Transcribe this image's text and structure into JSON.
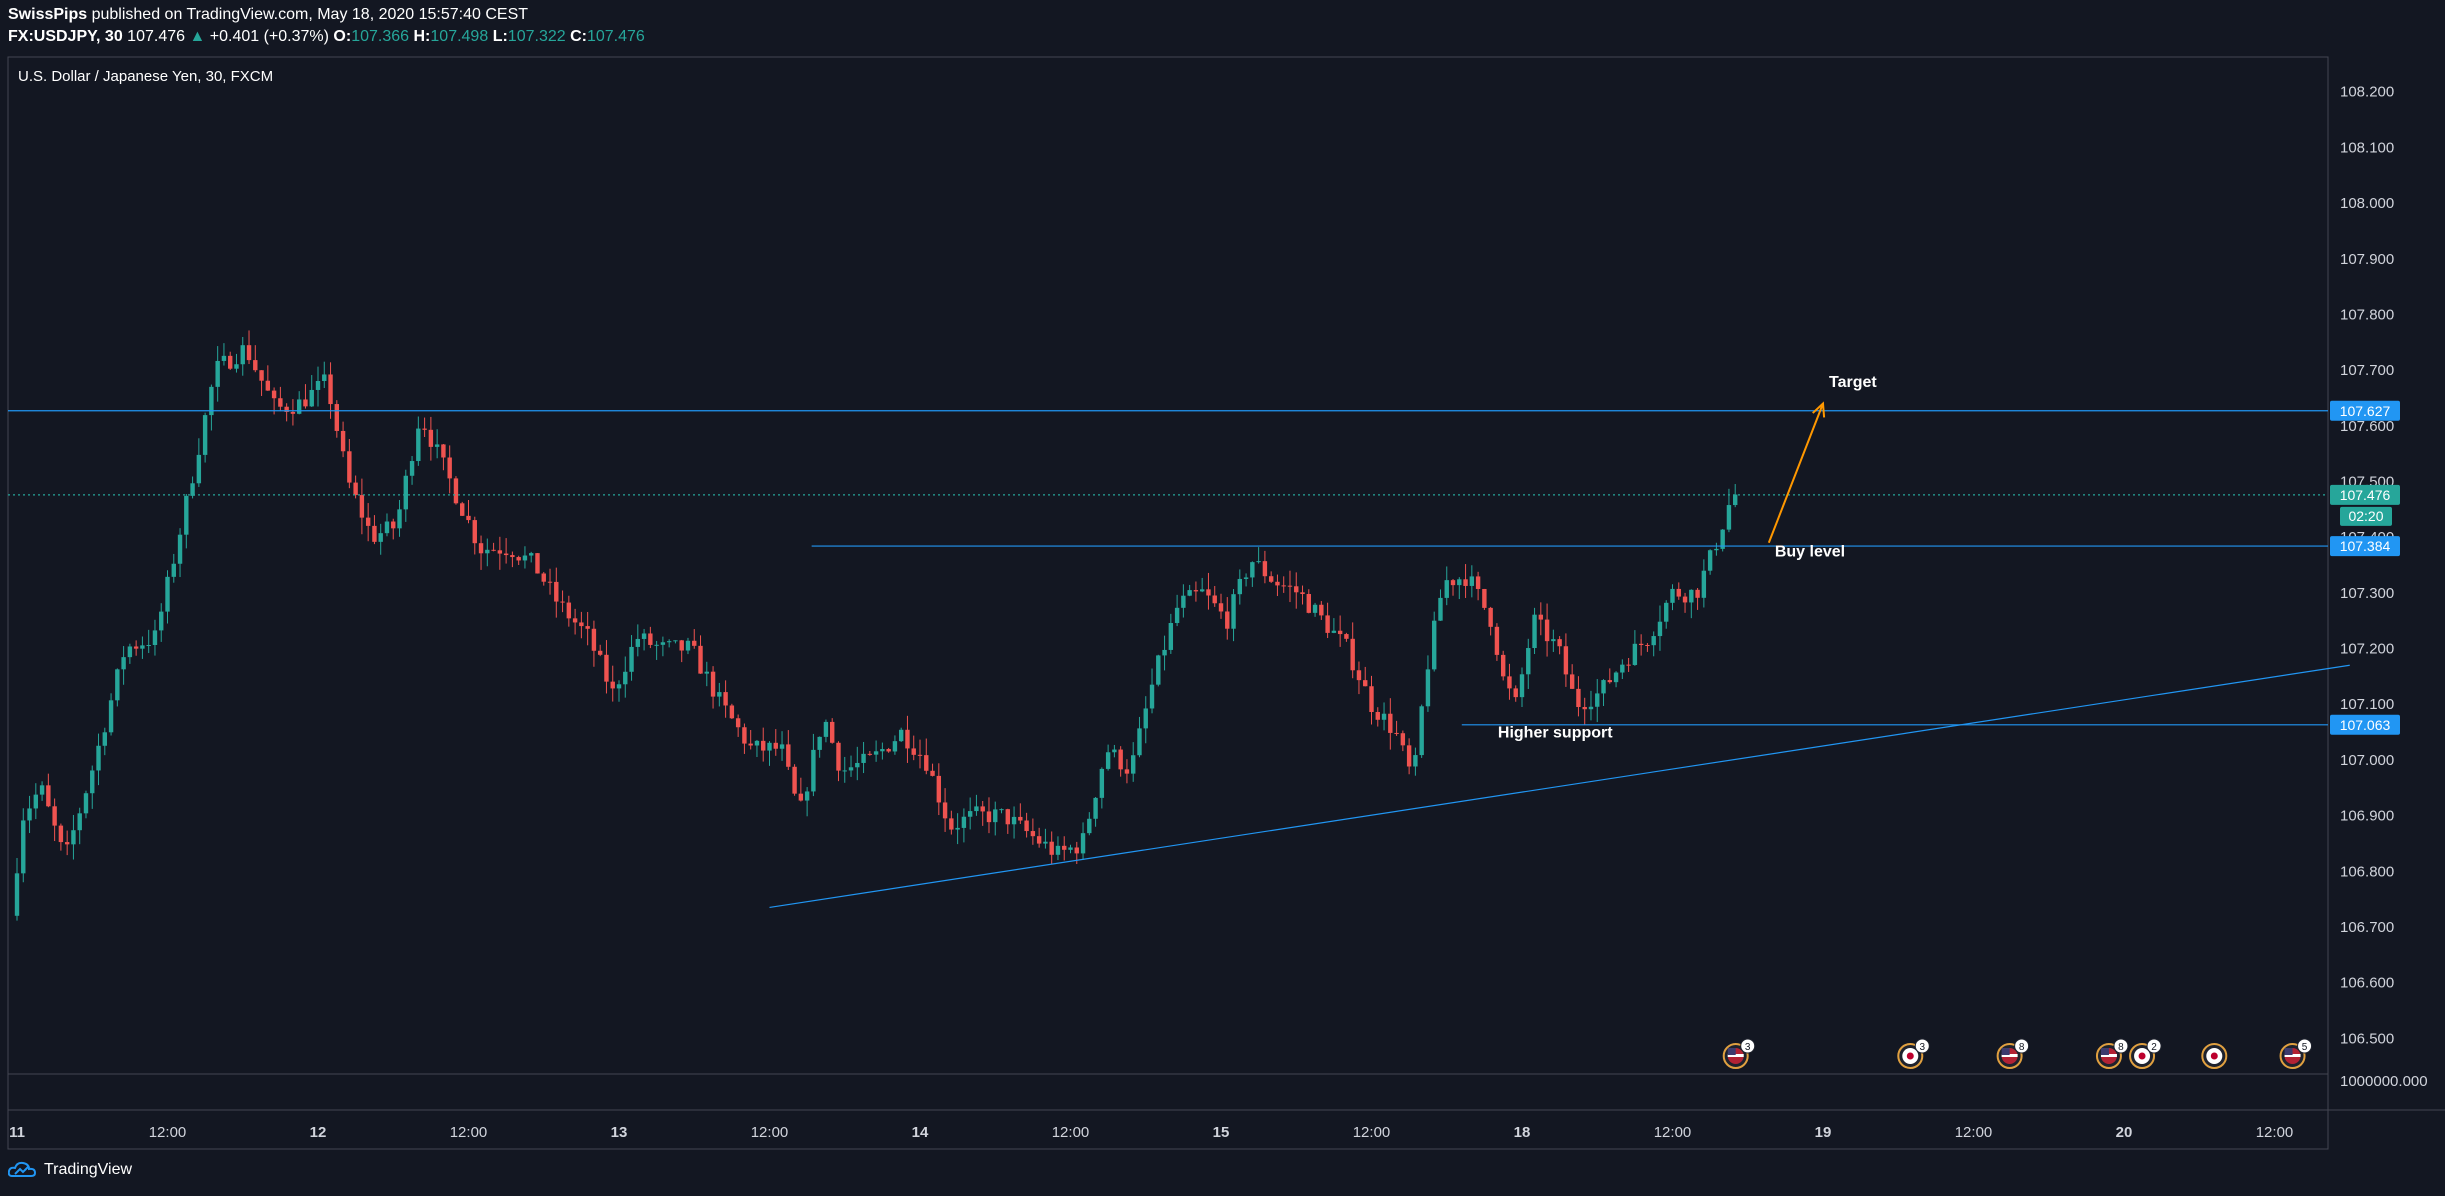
{
  "header": {
    "author": "SwissPips",
    "published": " published on TradingView.com, May 18, 2020 15:57:40 CEST",
    "symbol_interval": "FX:USDJPY, 30",
    "last": "107.476",
    "change": "+0.401 (+0.37%)",
    "o_label": "O:",
    "o_value": "107.366",
    "h_label": "H:",
    "h_value": "107.498",
    "l_label": "L:",
    "l_value": "107.322",
    "c_label": "C:",
    "c_value": "107.476"
  },
  "footer": {
    "brand": "TradingView"
  },
  "colors": {
    "background": "#131722",
    "up": "#26a69a",
    "down": "#ef5350",
    "line_blue": "#2196f3",
    "label_blue": "#2196f3",
    "arrow_orange": "#ff9800",
    "last_price_green": "#26a69a"
  },
  "chart_data": {
    "type": "candlestick",
    "title": "U.S. Dollar / Japanese Yen, 30, FXCM",
    "symbol": "USDJPY",
    "y_ticks": [
      "108.200",
      "108.100",
      "108.000",
      "107.900",
      "107.800",
      "107.700",
      "107.600",
      "107.500",
      "107.400",
      "107.300",
      "107.200",
      "107.100",
      "107.000",
      "106.900",
      "106.800",
      "106.700",
      "106.600",
      "106.500"
    ],
    "ylim": [
      106.47,
      108.23
    ],
    "volume_axis_tick": "1000000.000",
    "x_ticks": [
      {
        "label": "11",
        "day": 0.0
      },
      {
        "label": "12:00",
        "day": 0.5
      },
      {
        "label": "12",
        "day": 1.0
      },
      {
        "label": "12:00",
        "day": 1.5
      },
      {
        "label": "13",
        "day": 2.0
      },
      {
        "label": "12:00",
        "day": 2.5
      },
      {
        "label": "14",
        "day": 3.0
      },
      {
        "label": "12:00",
        "day": 3.5
      },
      {
        "label": "15",
        "day": 4.0
      },
      {
        "label": "12:00",
        "day": 4.5
      },
      {
        "label": "18",
        "day": 5.0
      },
      {
        "label": "12:00",
        "day": 5.5
      },
      {
        "label": "19",
        "day": 6.0
      },
      {
        "label": "12:00",
        "day": 6.5
      },
      {
        "label": "20",
        "day": 7.0
      },
      {
        "label": "12:00",
        "day": 7.5
      }
    ],
    "price_path": [
      [
        0.0,
        106.72
      ],
      [
        0.04,
        106.9
      ],
      [
        0.1,
        106.95
      ],
      [
        0.18,
        106.82
      ],
      [
        0.28,
        107.0
      ],
      [
        0.38,
        107.2
      ],
      [
        0.48,
        107.22
      ],
      [
        0.55,
        107.38
      ],
      [
        0.62,
        107.55
      ],
      [
        0.68,
        107.7
      ],
      [
        0.78,
        107.74
      ],
      [
        0.88,
        107.63
      ],
      [
        0.96,
        107.64
      ],
      [
        1.05,
        107.68
      ],
      [
        1.12,
        107.5
      ],
      [
        1.2,
        107.4
      ],
      [
        1.28,
        107.42
      ],
      [
        1.36,
        107.62
      ],
      [
        1.46,
        107.5
      ],
      [
        1.56,
        107.38
      ],
      [
        1.66,
        107.38
      ],
      [
        1.74,
        107.35
      ],
      [
        1.82,
        107.28
      ],
      [
        1.92,
        107.22
      ],
      [
        2.0,
        107.12
      ],
      [
        2.08,
        107.22
      ],
      [
        2.16,
        107.2
      ],
      [
        2.26,
        107.2
      ],
      [
        2.36,
        107.1
      ],
      [
        2.46,
        107.02
      ],
      [
        2.56,
        107.02
      ],
      [
        2.62,
        106.9
      ],
      [
        2.7,
        107.08
      ],
      [
        2.76,
        106.98
      ],
      [
        2.86,
        107.0
      ],
      [
        2.96,
        107.05
      ],
      [
        3.04,
        107.0
      ],
      [
        3.12,
        106.88
      ],
      [
        3.2,
        106.9
      ],
      [
        3.3,
        106.9
      ],
      [
        3.4,
        106.86
      ],
      [
        3.48,
        106.83
      ],
      [
        3.56,
        106.85
      ],
      [
        3.64,
        107.02
      ],
      [
        3.72,
        106.98
      ],
      [
        3.8,
        107.15
      ],
      [
        3.88,
        107.28
      ],
      [
        3.96,
        107.3
      ],
      [
        4.04,
        107.25
      ],
      [
        4.12,
        107.36
      ],
      [
        4.2,
        107.32
      ],
      [
        4.28,
        107.3
      ],
      [
        4.36,
        107.25
      ],
      [
        4.44,
        107.2
      ],
      [
        4.52,
        107.1
      ],
      [
        4.6,
        107.05
      ],
      [
        4.66,
        106.96
      ],
      [
        4.7,
        107.15
      ],
      [
        4.76,
        107.32
      ],
      [
        4.84,
        107.33
      ],
      [
        4.92,
        107.25
      ],
      [
        4.96,
        107.14
      ],
      [
        5.0,
        107.1
      ],
      [
        5.06,
        107.25
      ],
      [
        5.14,
        107.2
      ],
      [
        5.2,
        107.1
      ],
      [
        5.28,
        107.12
      ],
      [
        5.36,
        107.18
      ],
      [
        5.44,
        107.22
      ],
      [
        5.52,
        107.3
      ],
      [
        5.6,
        107.3
      ],
      [
        5.66,
        107.38
      ],
      [
        5.72,
        107.476
      ]
    ],
    "horizontal_lines": [
      {
        "price": 107.627,
        "label": "107.627",
        "from_day": -0.05,
        "style": "solid"
      },
      {
        "price": 107.476,
        "label": "107.476",
        "from_day": -0.05,
        "style": "dotted",
        "kind": "last-price"
      },
      {
        "price": 107.384,
        "label": "107.384",
        "from_day": 2.64,
        "style": "solid"
      },
      {
        "price": 107.063,
        "label": "107.063",
        "from_day": 4.8,
        "style": "solid"
      }
    ],
    "countdown": "02:20",
    "trendline": {
      "from": [
        2.5,
        106.735
      ],
      "to": [
        7.75,
        107.17
      ]
    },
    "arrow": {
      "from": [
        5.82,
        107.39
      ],
      "to": [
        6.0,
        107.64
      ]
    },
    "annotations": [
      {
        "text": "Target",
        "day": 6.02,
        "price": 107.67
      },
      {
        "text": "Buy level",
        "day": 5.84,
        "price": 107.365
      },
      {
        "text": "Higher support",
        "day": 4.92,
        "price": 107.04
      }
    ],
    "event_badges": [
      {
        "day": 5.71,
        "type": "us-flag",
        "count": "3"
      },
      {
        "day": 6.29,
        "type": "jp-flag",
        "count": "3"
      },
      {
        "day": 6.62,
        "type": "us-flag",
        "count": "8"
      },
      {
        "day": 6.95,
        "type": "us-flag",
        "count": "8"
      },
      {
        "day": 7.06,
        "type": "jp-flag",
        "count": "2"
      },
      {
        "day": 7.3,
        "type": "jp-flag",
        "count": ""
      },
      {
        "day": 7.56,
        "type": "us-flag",
        "count": "5"
      }
    ]
  }
}
